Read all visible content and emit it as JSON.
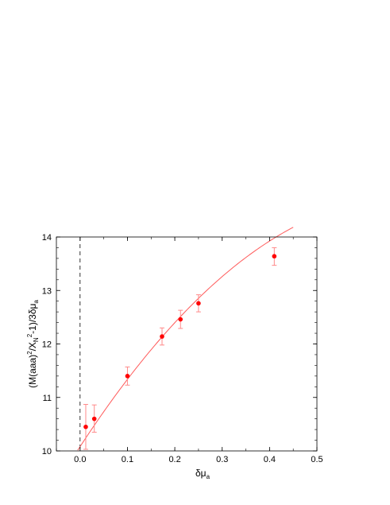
{
  "chart_data": {
    "type": "scatter",
    "title": "",
    "xlabel": "δμ",
    "xlabel_sub": "a",
    "ylabel_parts": {
      "a": "(M(aaa)",
      "sup1": "2",
      "b": "/X",
      "sub1": "N",
      "sup2": "2",
      "c": "-1)/3δμ",
      "sub2": "a"
    },
    "xlim": [
      -0.05,
      0.5
    ],
    "ylim": [
      10,
      14
    ],
    "x_ticks": [
      0.0,
      0.1,
      0.2,
      0.3,
      0.4,
      0.5
    ],
    "x_tick_labels": [
      "0.0",
      "0.1",
      "0.2",
      "0.3",
      "0.4",
      "0.5"
    ],
    "y_ticks": [
      10,
      11,
      12,
      13,
      14
    ],
    "y_tick_labels": [
      "10",
      "11",
      "12",
      "13",
      "14"
    ],
    "grid": false,
    "reference_line_x": 0,
    "points": [
      {
        "x": 0.012,
        "y": 10.45,
        "err_low": 10.03,
        "err_high": 10.87
      },
      {
        "x": 0.03,
        "y": 10.6,
        "err_low": 10.35,
        "err_high": 10.86
      },
      {
        "x": 0.1,
        "y": 11.4,
        "err_low": 11.23,
        "err_high": 11.57
      },
      {
        "x": 0.173,
        "y": 12.14,
        "err_low": 11.98,
        "err_high": 12.3
      },
      {
        "x": 0.212,
        "y": 12.46,
        "err_low": 12.29,
        "err_high": 12.63
      },
      {
        "x": 0.25,
        "y": 12.76,
        "err_low": 12.6,
        "err_high": 12.92
      },
      {
        "x": 0.41,
        "y": 13.64,
        "err_low": 13.47,
        "err_high": 13.8
      }
    ],
    "fit_curve": {
      "x_range": [
        -0.005,
        0.45
      ],
      "coefficients": [
        10.08,
        13.57,
        -9.9
      ]
    },
    "colors": {
      "points": "#ff0000",
      "error_bars": "#ff8a8a",
      "fit": "#ff5a5a",
      "axes": "#000000",
      "reference_line": "#000000"
    }
  }
}
